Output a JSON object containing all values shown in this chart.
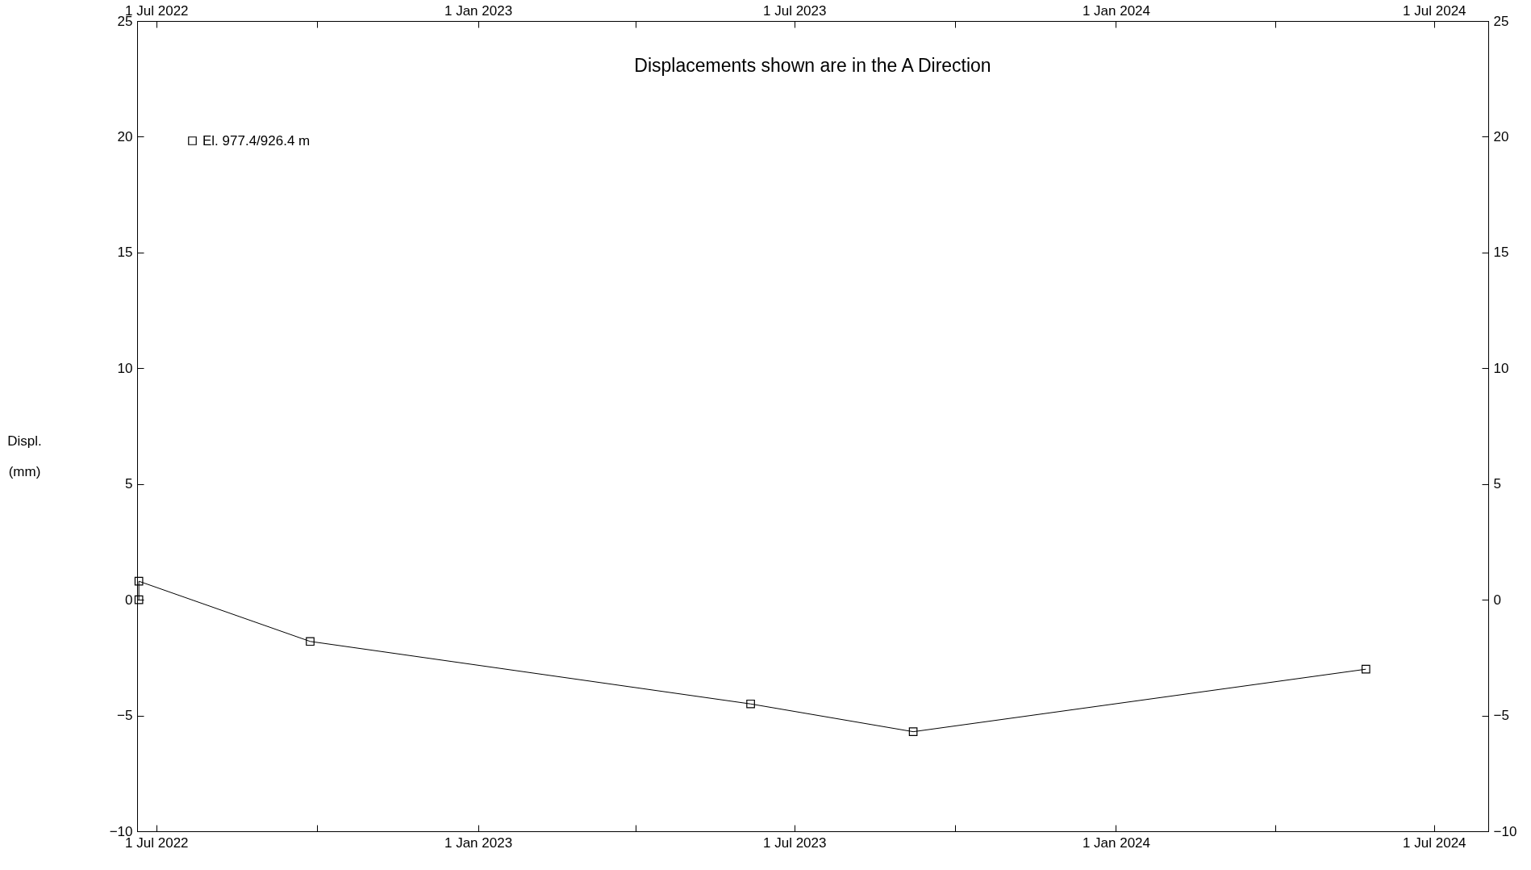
{
  "chart_data": {
    "type": "line",
    "title": "Displacements shown are in the  A Direction",
    "ylabel": "Displ.\n(mm)",
    "x": [
      "2022-06-21",
      "2022-06-21",
      "2022-09-27",
      "2023-06-06",
      "2023-09-07",
      "2024-05-23"
    ],
    "series": [
      {
        "name": "El. 977.4/926.4 m",
        "color": "#000000",
        "values": [
          0,
          0.8,
          -1.8,
          -4.5,
          -5.7,
          -3.0
        ]
      }
    ],
    "xlim": [
      "2022-06-20",
      "2024-08-01"
    ],
    "xticks": [
      {
        "value": "2022-07-01",
        "label": "1 Jul 2022"
      },
      {
        "value": "2022-10-01",
        "label": null
      },
      {
        "value": "2023-01-01",
        "label": "1 Jan 2023"
      },
      {
        "value": "2023-04-01",
        "label": null
      },
      {
        "value": "2023-07-01",
        "label": "1 Jul 2023"
      },
      {
        "value": "2023-10-01",
        "label": null
      },
      {
        "value": "2024-01-01",
        "label": "1 Jan 2024"
      },
      {
        "value": "2024-04-01",
        "label": null
      },
      {
        "value": "2024-07-01",
        "label": "1 Jul 2024"
      }
    ],
    "x2lim": [
      "2022-06-20",
      "2024-08-01"
    ],
    "x2ticks": [
      {
        "value": "2022-07-01",
        "label": "1 Jul 2022"
      },
      {
        "value": "2022-10-01",
        "label": null
      },
      {
        "value": "2023-01-01",
        "label": "1 Jan 2023"
      },
      {
        "value": "2023-04-01",
        "label": null
      },
      {
        "value": "2023-07-01",
        "label": "1 Jul 2023"
      },
      {
        "value": "2023-10-01",
        "label": null
      },
      {
        "value": "2024-01-01",
        "label": "1 Jan 2024"
      },
      {
        "value": "2024-04-01",
        "label": null
      },
      {
        "value": "2024-07-01",
        "label": "1 Jul 2024"
      }
    ],
    "ylim": [
      -10,
      25
    ],
    "yticks": [
      -10,
      -5,
      0,
      5,
      10,
      15,
      20,
      25
    ],
    "y2lim": [
      -10,
      25
    ],
    "y2ticks": [
      -10,
      -5,
      0,
      5,
      10,
      15,
      20,
      25
    ],
    "marker": "square",
    "line_style": "solid",
    "legend": "top left",
    "grid": false
  }
}
